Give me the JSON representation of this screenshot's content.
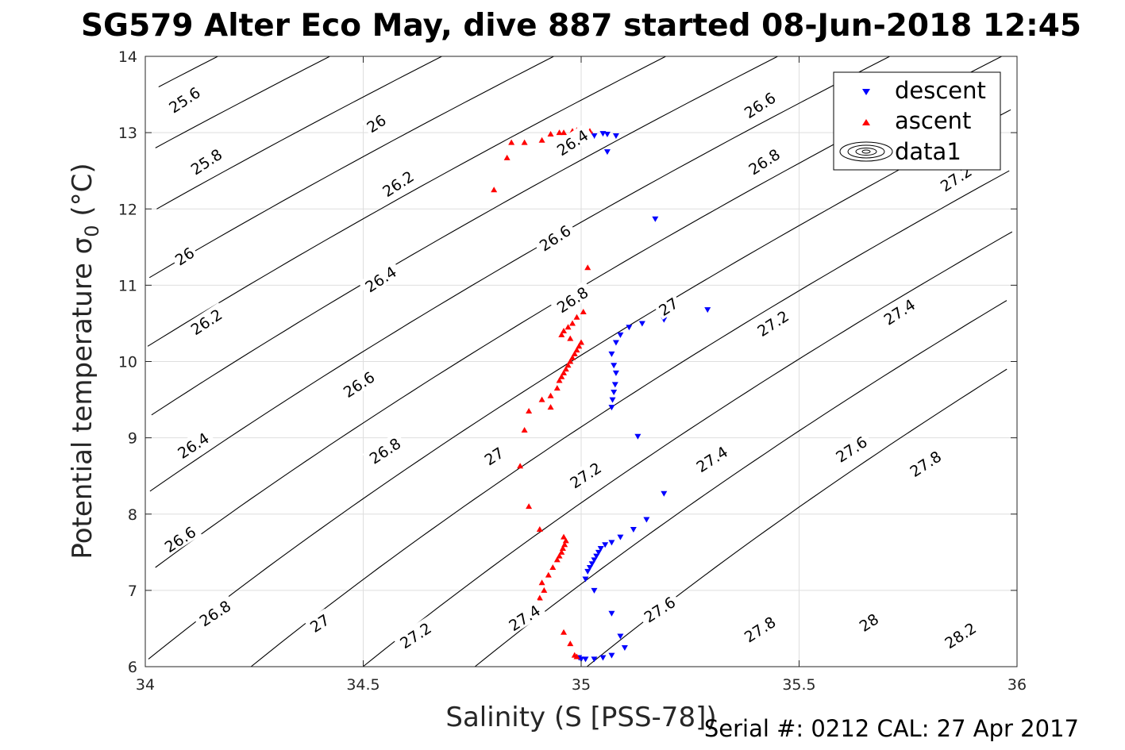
{
  "chart_data": {
    "type": "scatter",
    "title": "SG579 Alter Eco May, dive 887 started 08-Jun-2018 12:45",
    "xlabel": "Salinity (S [PSS-78])",
    "ylabel_main": "Potential temperature σ",
    "ylabel_sub": "0",
    "ylabel_unit": " (°C)",
    "footer": "Serial #: 0212  CAL: 27 Apr 2017",
    "xlim": [
      34,
      36
    ],
    "ylim": [
      6,
      14
    ],
    "xticks": [
      "34",
      "34.5",
      "35",
      "35.5",
      "36"
    ],
    "yticks": [
      "6",
      "7",
      "8",
      "9",
      "10",
      "11",
      "12",
      "13",
      "14"
    ],
    "grid": true,
    "legend_position": "top-right",
    "legend": [
      "descent",
      "ascent",
      "data1"
    ],
    "colors": {
      "descent": "#0000ff",
      "ascent": "#ff0000",
      "contours": "#000000"
    },
    "contours": {
      "levels": [
        "25.6",
        "25.8",
        "26",
        "26.2",
        "26.4",
        "26.6",
        "26.8",
        "27",
        "27.2",
        "27.4",
        "27.6",
        "27.8",
        "28",
        "28.2"
      ],
      "labels": [
        {
          "text": "25.6",
          "x": 34.09,
          "y": 13.43
        },
        {
          "text": "25.8",
          "x": 34.14,
          "y": 12.62
        },
        {
          "text": "26",
          "x": 34.53,
          "y": 13.12
        },
        {
          "text": "26.2",
          "x": 34.58,
          "y": 12.33
        },
        {
          "text": "26",
          "x": 34.09,
          "y": 11.38
        },
        {
          "text": "26.4",
          "x": 34.98,
          "y": 12.87
        },
        {
          "text": "26.2",
          "x": 34.14,
          "y": 10.52
        },
        {
          "text": "26.4",
          "x": 34.54,
          "y": 11.08
        },
        {
          "text": "26.6",
          "x": 35.41,
          "y": 13.36
        },
        {
          "text": "26.6",
          "x": 34.94,
          "y": 11.62
        },
        {
          "text": "26.4",
          "x": 34.11,
          "y": 8.9
        },
        {
          "text": "26.6",
          "x": 34.49,
          "y": 9.7
        },
        {
          "text": "26.8",
          "x": 35.42,
          "y": 12.62
        },
        {
          "text": "26.8",
          "x": 34.98,
          "y": 10.81
        },
        {
          "text": "27",
          "x": 35.2,
          "y": 10.72
        },
        {
          "text": "27.2",
          "x": 35.86,
          "y": 12.4
        },
        {
          "text": "26.6",
          "x": 34.08,
          "y": 7.67
        },
        {
          "text": "26.8",
          "x": 34.55,
          "y": 8.83
        },
        {
          "text": "27",
          "x": 34.8,
          "y": 8.76
        },
        {
          "text": "27.2",
          "x": 35.44,
          "y": 10.5
        },
        {
          "text": "27.4",
          "x": 35.73,
          "y": 10.65
        },
        {
          "text": "27.2",
          "x": 35.01,
          "y": 8.51
        },
        {
          "text": "27.4",
          "x": 35.3,
          "y": 8.72
        },
        {
          "text": "26.8",
          "x": 34.16,
          "y": 6.7
        },
        {
          "text": "27",
          "x": 34.4,
          "y": 6.57
        },
        {
          "text": "27.2",
          "x": 34.62,
          "y": 6.41
        },
        {
          "text": "27.4",
          "x": 34.87,
          "y": 6.64
        },
        {
          "text": "27.6",
          "x": 35.18,
          "y": 6.75
        },
        {
          "text": "27.6",
          "x": 35.62,
          "y": 8.85
        },
        {
          "text": "27.8",
          "x": 35.79,
          "y": 8.66
        },
        {
          "text": "27.8",
          "x": 35.41,
          "y": 6.49
        },
        {
          "text": "28",
          "x": 35.66,
          "y": 6.58
        },
        {
          "text": "28.2",
          "x": 35.87,
          "y": 6.41
        }
      ]
    },
    "series": [
      {
        "name": "descent",
        "marker": "triangle-down",
        "x": [
          35.02,
          35.03,
          35.05,
          35.06,
          35.08,
          35.06,
          35.17,
          35.29,
          35.19,
          35.14,
          35.11,
          35.09,
          35.08,
          35.07,
          35.075,
          35.08,
          35.078,
          35.075,
          35.072,
          35.07,
          35.13,
          35.19,
          35.15,
          35.12,
          35.09,
          35.07,
          35.055,
          35.045,
          35.04,
          35.035,
          35.03,
          35.025,
          35.02,
          35.015,
          35.01,
          35.03,
          35.07,
          35.09,
          35.1,
          35.07,
          35.05,
          35.03,
          35.01,
          35.0,
          34.995
        ],
        "y": [
          12.98,
          12.96,
          12.99,
          12.98,
          12.96,
          12.75,
          11.87,
          10.68,
          10.55,
          10.5,
          10.45,
          10.35,
          10.25,
          10.1,
          9.95,
          9.85,
          9.7,
          9.6,
          9.5,
          9.4,
          9.02,
          8.27,
          7.93,
          7.8,
          7.7,
          7.63,
          7.6,
          7.55,
          7.5,
          7.45,
          7.4,
          7.35,
          7.3,
          7.25,
          7.15,
          7.0,
          6.7,
          6.4,
          6.25,
          6.15,
          6.12,
          6.1,
          6.1,
          6.1,
          6.12
        ]
      },
      {
        "name": "ascent",
        "marker": "triangle-up",
        "x": [
          34.8,
          34.83,
          34.84,
          34.87,
          34.91,
          34.93,
          34.95,
          34.96,
          34.98,
          34.99,
          35.0,
          35.01,
          35.01,
          35.02,
          35.015,
          35.005,
          34.99,
          34.98,
          34.97,
          34.96,
          34.955,
          34.975,
          35.0,
          34.995,
          34.99,
          34.985,
          34.98,
          34.975,
          34.97,
          34.965,
          34.96,
          34.955,
          34.95,
          34.945,
          34.93,
          34.93,
          34.91,
          34.88,
          34.87,
          34.86,
          34.88,
          34.905,
          34.96,
          34.965,
          34.962,
          34.958,
          34.955,
          34.95,
          34.945,
          34.935,
          34.925,
          34.91,
          34.915,
          34.905,
          34.9,
          34.96,
          34.975,
          34.985,
          34.99
        ],
        "y": [
          12.25,
          12.67,
          12.87,
          12.87,
          12.9,
          12.98,
          13.0,
          13.0,
          13.02,
          13.03,
          13.03,
          13.02,
          13.04,
          13.02,
          11.23,
          10.65,
          10.58,
          10.5,
          10.45,
          10.4,
          10.35,
          10.3,
          10.25,
          10.2,
          10.15,
          10.1,
          10.05,
          10.0,
          9.95,
          9.9,
          9.85,
          9.8,
          9.75,
          9.65,
          9.55,
          9.4,
          9.5,
          9.35,
          9.1,
          8.63,
          8.1,
          7.8,
          7.7,
          7.65,
          7.6,
          7.55,
          7.5,
          7.45,
          7.4,
          7.3,
          7.2,
          7.1,
          7.0,
          6.9,
          6.8,
          6.45,
          6.3,
          6.15,
          6.13
        ]
      }
    ]
  }
}
